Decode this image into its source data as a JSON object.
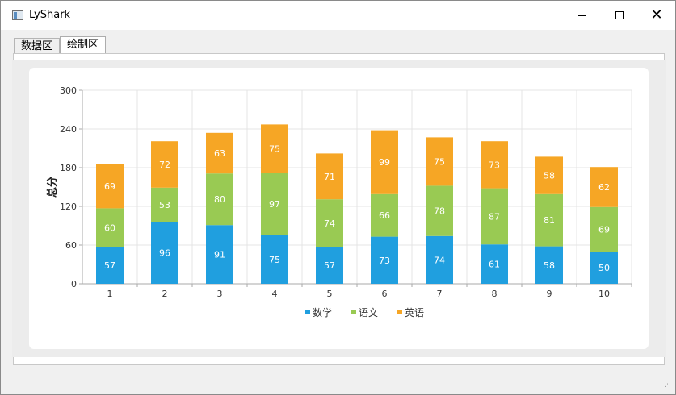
{
  "window": {
    "title": "LyShark",
    "icons": {
      "app": "app-window-icon",
      "minimize": "minimize-icon",
      "maximize": "maximize-icon",
      "close": "close-icon"
    }
  },
  "tabs": [
    {
      "label": "数据区",
      "active": false
    },
    {
      "label": "绘制区",
      "active": true
    }
  ],
  "colors": {
    "math": "#209fdf",
    "chinese": "#99ca53",
    "english": "#f6a625",
    "grid": "#e4e4e4",
    "axis": "#aaaaaa"
  },
  "chart_data": {
    "type": "bar",
    "stacked": true,
    "categories": [
      "1",
      "2",
      "3",
      "4",
      "5",
      "6",
      "7",
      "8",
      "9",
      "10"
    ],
    "series": [
      {
        "name": "数学",
        "color": "#209fdf",
        "values": [
          57,
          96,
          91,
          75,
          57,
          73,
          74,
          61,
          58,
          50
        ]
      },
      {
        "name": "语文",
        "color": "#99ca53",
        "values": [
          60,
          53,
          80,
          97,
          74,
          66,
          78,
          87,
          81,
          69
        ]
      },
      {
        "name": "英语",
        "color": "#f6a625",
        "values": [
          69,
          72,
          63,
          75,
          71,
          99,
          75,
          73,
          58,
          62
        ]
      }
    ],
    "title": "",
    "xlabel": "",
    "ylabel": "总分",
    "ylim": [
      0,
      300
    ],
    "yticks": [
      "0",
      "60",
      "120",
      "180",
      "240",
      "300"
    ],
    "grid": true,
    "legend": "bottom"
  }
}
